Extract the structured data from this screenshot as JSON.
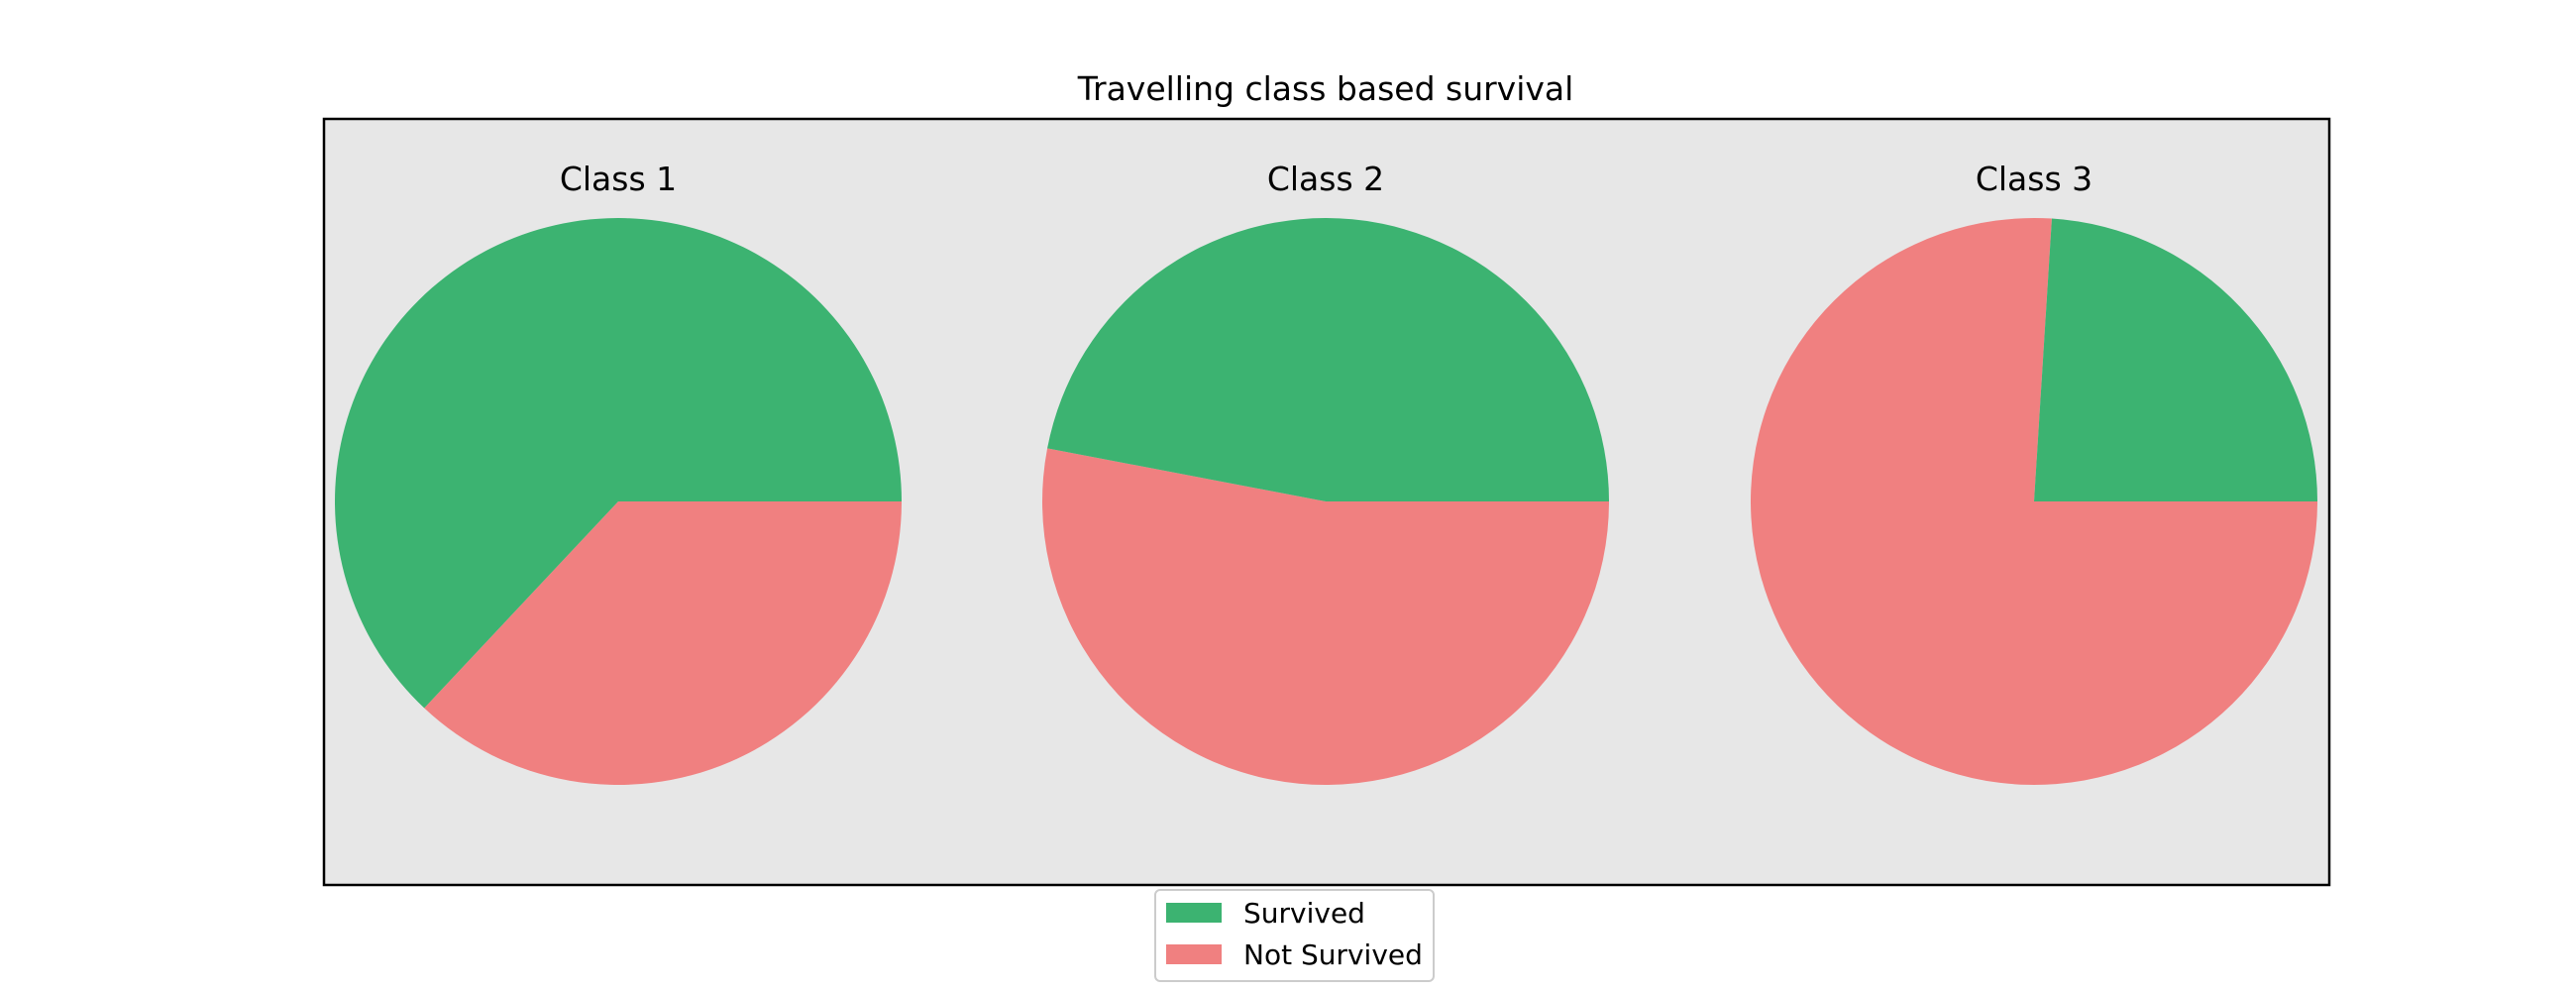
{
  "chart_data": {
    "type": "pie",
    "title": "Travelling class based survival",
    "colors": {
      "Survived": "#3cb371",
      "Not Survived": "#f08080",
      "panel": "#e7e7e7"
    },
    "legend": {
      "placement": "bottom-center",
      "entries": [
        "Survived",
        "Not Survived"
      ]
    },
    "pies": [
      {
        "name": "Class 1",
        "start_angle_deg": 0,
        "slices": [
          {
            "label": "Survived",
            "value": 63
          },
          {
            "label": "Not Survived",
            "value": 37
          }
        ]
      },
      {
        "name": "Class 2",
        "start_angle_deg": 0,
        "slices": [
          {
            "label": "Survived",
            "value": 47
          },
          {
            "label": "Not Survived",
            "value": 53
          }
        ]
      },
      {
        "name": "Class 3",
        "start_angle_deg": 0,
        "slices": [
          {
            "label": "Survived",
            "value": 24
          },
          {
            "label": "Not Survived",
            "value": 76
          }
        ]
      }
    ]
  }
}
